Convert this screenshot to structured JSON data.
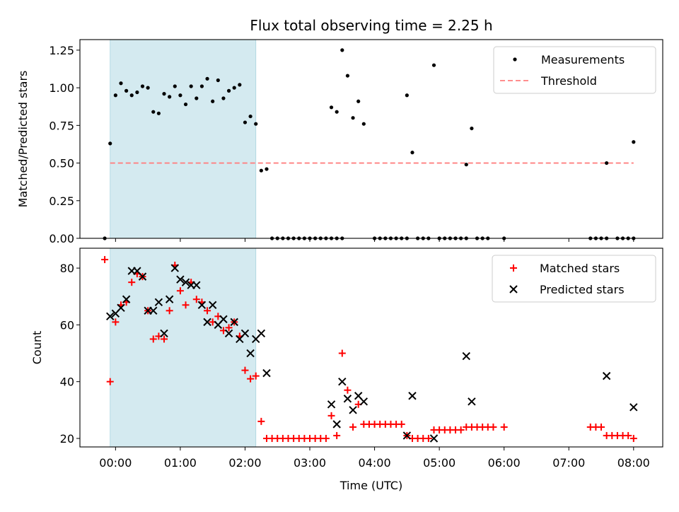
{
  "chart_data": [
    {
      "type": "scatter",
      "title": "Flux total observing time = 2.25 h",
      "xlabel": "",
      "ylabel": "Matched/Predicted stars",
      "xlim": [
        "23:27",
        "08:27"
      ],
      "ylim": [
        0,
        1.32
      ],
      "yticks": [
        0,
        0.25,
        0.5,
        0.75,
        1.0,
        1.25
      ],
      "ytick_labels": [
        "0.00",
        "0.25",
        "0.50",
        "0.75",
        "1.00",
        "1.25"
      ],
      "shaded_span": [
        "23:55",
        "02:10"
      ],
      "shaded_color": "#d4eaf0",
      "legend": {
        "position": "upper right",
        "entries": [
          "Measurements",
          "Threshold"
        ]
      },
      "threshold": {
        "name": "Threshold",
        "value": 0.5,
        "x_range": [
          "23:55",
          "08:00"
        ],
        "color": "#ff7f7f"
      },
      "series": [
        {
          "name": "Measurements",
          "marker": "dot",
          "color": "#000000",
          "points": [
            [
              "23:50",
              0.0
            ],
            [
              "23:55",
              0.63
            ],
            [
              "24:00",
              0.95
            ],
            [
              "24:05",
              1.03
            ],
            [
              "24:10",
              0.98
            ],
            [
              "24:15",
              0.95
            ],
            [
              "24:20",
              0.97
            ],
            [
              "24:25",
              1.01
            ],
            [
              "24:30",
              1.0
            ],
            [
              "24:35",
              0.84
            ],
            [
              "24:40",
              0.83
            ],
            [
              "24:45",
              0.96
            ],
            [
              "24:50",
              0.94
            ],
            [
              "24:55",
              1.01
            ],
            [
              "25:00",
              0.95
            ],
            [
              "25:05",
              0.89
            ],
            [
              "25:10",
              1.01
            ],
            [
              "25:15",
              0.93
            ],
            [
              "25:20",
              1.01
            ],
            [
              "25:25",
              1.06
            ],
            [
              "25:30",
              0.91
            ],
            [
              "25:35",
              1.05
            ],
            [
              "25:40",
              0.93
            ],
            [
              "25:45",
              0.98
            ],
            [
              "25:50",
              1.0
            ],
            [
              "25:55",
              1.02
            ],
            [
              "26:00",
              0.77
            ],
            [
              "26:05",
              0.81
            ],
            [
              "26:10",
              0.76
            ],
            [
              "26:15",
              0.45
            ],
            [
              "26:20",
              0.46
            ],
            [
              "26:25",
              0.0
            ],
            [
              "26:30",
              0.0
            ],
            [
              "26:35",
              0.0
            ],
            [
              "26:40",
              0.0
            ],
            [
              "26:45",
              0.0
            ],
            [
              "26:50",
              0.0
            ],
            [
              "26:55",
              0.0
            ],
            [
              "27:00",
              0.0
            ],
            [
              "27:05",
              0.0
            ],
            [
              "27:10",
              0.0
            ],
            [
              "27:15",
              0.0
            ],
            [
              "27:20",
              0.0
            ],
            [
              "27:25",
              0.0
            ],
            [
              "27:30",
              0.0
            ],
            [
              "27:20",
              0.87
            ],
            [
              "27:25",
              0.84
            ],
            [
              "27:30",
              1.25
            ],
            [
              "27:35",
              1.08
            ],
            [
              "27:40",
              0.8
            ],
            [
              "27:45",
              0.91
            ],
            [
              "27:50",
              0.76
            ],
            [
              "28:00",
              0.0
            ],
            [
              "28:05",
              0.0
            ],
            [
              "28:10",
              0.0
            ],
            [
              "28:15",
              0.0
            ],
            [
              "28:20",
              0.0
            ],
            [
              "28:25",
              0.0
            ],
            [
              "28:30",
              0.0
            ],
            [
              "28:30",
              0.95
            ],
            [
              "28:35",
              0.57
            ],
            [
              "28:40",
              0.0
            ],
            [
              "28:45",
              0.0
            ],
            [
              "28:50",
              0.0
            ],
            [
              "28:55",
              1.15
            ],
            [
              "29:00",
              0.0
            ],
            [
              "29:05",
              0.0
            ],
            [
              "29:10",
              0.0
            ],
            [
              "29:15",
              0.0
            ],
            [
              "29:20",
              0.0
            ],
            [
              "29:25",
              0.0
            ],
            [
              "29:25",
              0.49
            ],
            [
              "29:30",
              0.73
            ],
            [
              "29:35",
              0.0
            ],
            [
              "29:40",
              0.0
            ],
            [
              "29:45",
              0.0
            ],
            [
              "30:00",
              0.0
            ],
            [
              "31:20",
              0.0
            ],
            [
              "31:25",
              0.0
            ],
            [
              "31:30",
              0.0
            ],
            [
              "31:35",
              0.0
            ],
            [
              "31:35",
              0.5
            ],
            [
              "31:45",
              0.0
            ],
            [
              "31:50",
              0.0
            ],
            [
              "31:55",
              0.0
            ],
            [
              "32:00",
              0.0
            ],
            [
              "32:00",
              0.64
            ]
          ]
        }
      ]
    },
    {
      "type": "scatter",
      "title": "",
      "xlabel": "Time (UTC)",
      "ylabel": "Count",
      "xlim": [
        "23:27",
        "08:27"
      ],
      "ylim": [
        17,
        87
      ],
      "yticks": [
        20,
        40,
        60,
        80
      ],
      "ytick_labels": [
        "20",
        "40",
        "60",
        "80"
      ],
      "xticks": [
        "00:00",
        "01:00",
        "02:00",
        "03:00",
        "04:00",
        "05:00",
        "06:00",
        "07:00",
        "08:00"
      ],
      "shaded_span": [
        "23:55",
        "02:10"
      ],
      "legend": {
        "position": "upper right",
        "entries": [
          "Matched stars",
          "Predicted stars"
        ]
      },
      "series": [
        {
          "name": "Matched stars",
          "marker": "plus",
          "color": "#ff0000",
          "points": [
            [
              "23:50",
              83
            ],
            [
              "23:55",
              40
            ],
            [
              "24:00",
              61
            ],
            [
              "24:05",
              67
            ],
            [
              "24:10",
              68
            ],
            [
              "24:15",
              75
            ],
            [
              "24:20",
              78
            ],
            [
              "24:25",
              77
            ],
            [
              "24:30",
              65
            ],
            [
              "24:35",
              55
            ],
            [
              "24:40",
              56
            ],
            [
              "24:45",
              55
            ],
            [
              "24:50",
              65
            ],
            [
              "24:55",
              81
            ],
            [
              "25:00",
              72
            ],
            [
              "25:05",
              67
            ],
            [
              "25:10",
              75
            ],
            [
              "25:15",
              69
            ],
            [
              "25:20",
              68
            ],
            [
              "25:25",
              65
            ],
            [
              "25:30",
              61
            ],
            [
              "25:35",
              63
            ],
            [
              "25:40",
              58
            ],
            [
              "25:45",
              59
            ],
            [
              "25:50",
              61
            ],
            [
              "25:55",
              56
            ],
            [
              "26:00",
              44
            ],
            [
              "26:05",
              41
            ],
            [
              "26:10",
              42
            ],
            [
              "26:15",
              26
            ],
            [
              "26:20",
              20
            ],
            [
              "26:25",
              20
            ],
            [
              "26:30",
              20
            ],
            [
              "26:35",
              20
            ],
            [
              "26:40",
              20
            ],
            [
              "26:45",
              20
            ],
            [
              "26:50",
              20
            ],
            [
              "26:55",
              20
            ],
            [
              "27:00",
              20
            ],
            [
              "27:05",
              20
            ],
            [
              "27:10",
              20
            ],
            [
              "27:15",
              20
            ],
            [
              "27:20",
              28
            ],
            [
              "27:25",
              21
            ],
            [
              "27:30",
              50
            ],
            [
              "27:35",
              37
            ],
            [
              "27:40",
              24
            ],
            [
              "27:45",
              32
            ],
            [
              "27:50",
              25
            ],
            [
              "27:55",
              25
            ],
            [
              "28:00",
              25
            ],
            [
              "28:05",
              25
            ],
            [
              "28:10",
              25
            ],
            [
              "28:15",
              25
            ],
            [
              "28:20",
              25
            ],
            [
              "28:25",
              25
            ],
            [
              "28:30",
              21
            ],
            [
              "28:35",
              20
            ],
            [
              "28:40",
              20
            ],
            [
              "28:45",
              20
            ],
            [
              "28:50",
              20
            ],
            [
              "28:55",
              23
            ],
            [
              "29:00",
              23
            ],
            [
              "29:05",
              23
            ],
            [
              "29:10",
              23
            ],
            [
              "29:15",
              23
            ],
            [
              "29:20",
              23
            ],
            [
              "29:25",
              24
            ],
            [
              "29:30",
              24
            ],
            [
              "29:35",
              24
            ],
            [
              "29:40",
              24
            ],
            [
              "29:45",
              24
            ],
            [
              "29:50",
              24
            ],
            [
              "30:00",
              24
            ],
            [
              "31:20",
              24
            ],
            [
              "31:25",
              24
            ],
            [
              "31:30",
              24
            ],
            [
              "31:35",
              21
            ],
            [
              "31:40",
              21
            ],
            [
              "31:45",
              21
            ],
            [
              "31:50",
              21
            ],
            [
              "31:55",
              21
            ],
            [
              "32:00",
              20
            ]
          ]
        },
        {
          "name": "Predicted stars",
          "marker": "x",
          "color": "#000000",
          "points": [
            [
              "23:55",
              63
            ],
            [
              "24:00",
              64
            ],
            [
              "24:05",
              66
            ],
            [
              "24:10",
              69
            ],
            [
              "24:15",
              79
            ],
            [
              "24:20",
              79
            ],
            [
              "24:25",
              77
            ],
            [
              "24:30",
              65
            ],
            [
              "24:35",
              65
            ],
            [
              "24:40",
              68
            ],
            [
              "24:45",
              57
            ],
            [
              "24:50",
              69
            ],
            [
              "24:55",
              80
            ],
            [
              "25:00",
              76
            ],
            [
              "25:05",
              75
            ],
            [
              "25:10",
              74
            ],
            [
              "25:15",
              74
            ],
            [
              "25:20",
              67
            ],
            [
              "25:25",
              61
            ],
            [
              "25:30",
              67
            ],
            [
              "25:35",
              60
            ],
            [
              "25:40",
              62
            ],
            [
              "25:45",
              57
            ],
            [
              "25:50",
              61
            ],
            [
              "25:55",
              55
            ],
            [
              "26:00",
              57
            ],
            [
              "26:05",
              50
            ],
            [
              "26:10",
              55
            ],
            [
              "26:15",
              57
            ],
            [
              "26:20",
              43
            ],
            [
              "27:20",
              32
            ],
            [
              "27:25",
              25
            ],
            [
              "27:30",
              40
            ],
            [
              "27:35",
              34
            ],
            [
              "27:40",
              30
            ],
            [
              "27:45",
              35
            ],
            [
              "27:50",
              33
            ],
            [
              "28:30",
              21
            ],
            [
              "28:35",
              35
            ],
            [
              "28:55",
              20
            ],
            [
              "29:25",
              49
            ],
            [
              "29:30",
              33
            ],
            [
              "31:35",
              42
            ],
            [
              "32:00",
              31
            ]
          ]
        }
      ]
    }
  ]
}
